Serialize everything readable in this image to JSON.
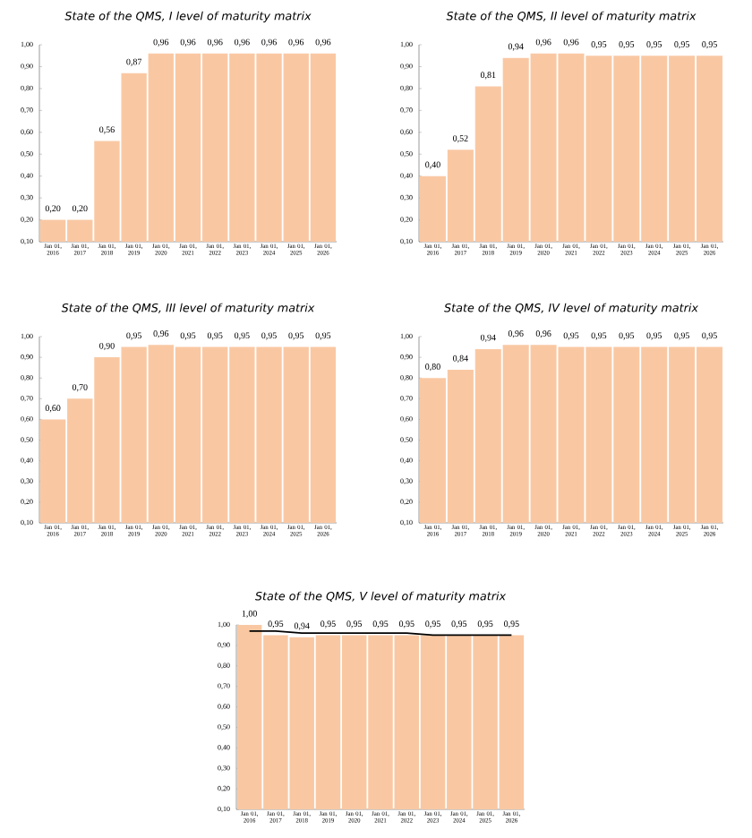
{
  "chart_data": [
    {
      "type": "bar",
      "title": "State of the QMS, I level of maturity matrix",
      "categories": [
        "Jan 01, 2016",
        "Jan 01, 2017",
        "Jan 01, 2018",
        "Jan 01, 2019",
        "Jan 01, 2020",
        "Jan 01, 2021",
        "Jan 01, 2022",
        "Jan 01, 2023",
        "Jan 01, 2024",
        "Jan 01, 2025",
        "Jan 01, 2026"
      ],
      "color": "#f9c8a3",
      "values": [
        0.2,
        0.2,
        0.56,
        0.87,
        0.96,
        0.96,
        0.96,
        0.96,
        0.96,
        0.96,
        0.96
      ],
      "value_labels": [
        "0,20",
        "0,20",
        "0,56",
        "0,87",
        "0,96",
        "0,96",
        "0,96",
        "0,96",
        "0,96",
        "0,96",
        "0,96"
      ],
      "ylim": [
        0.1,
        1.0
      ],
      "yticks": [
        {
          "value": 0.1,
          "label": "0,10"
        },
        {
          "value": 0.2,
          "label": "0,20"
        },
        {
          "value": 0.3,
          "label": "0,30"
        },
        {
          "value": 0.4,
          "label": "0,40"
        },
        {
          "value": 0.5,
          "label": "0,50"
        },
        {
          "value": 0.6,
          "label": "0,60"
        },
        {
          "value": 0.7,
          "label": "0,70"
        },
        {
          "value": 0.8,
          "label": "0,80"
        },
        {
          "value": 0.9,
          "label": "0,90"
        },
        {
          "value": 1.0,
          "label": "1,00"
        }
      ]
    },
    {
      "type": "bar",
      "title": "State of the QMS, II level of maturity matrix",
      "categories": [
        "Jan 01, 2016",
        "Jan 01, 2017",
        "Jan 01, 2018",
        "Jan 01, 2019",
        "Jan 01, 2020",
        "Jan 01, 2021",
        "Jan 01, 2022",
        "Jan 01, 2023",
        "Jan 01, 2024",
        "Jan 01, 2025",
        "Jan 01, 2026"
      ],
      "color": "#f9c8a3",
      "values": [
        0.4,
        0.52,
        0.81,
        0.94,
        0.96,
        0.96,
        0.95,
        0.95,
        0.95,
        0.95,
        0.95
      ],
      "value_labels": [
        "0,40",
        "0,52",
        "0,81",
        "0,94",
        "0,96",
        "0,96",
        "0,95",
        "0,95",
        "0,95",
        "0,95",
        "0,95"
      ],
      "ylim": [
        0.1,
        1.0
      ],
      "yticks": [
        {
          "value": 0.1,
          "label": "0,10"
        },
        {
          "value": 0.2,
          "label": "0,20"
        },
        {
          "value": 0.3,
          "label": "0,30"
        },
        {
          "value": 0.4,
          "label": "0,40"
        },
        {
          "value": 0.5,
          "label": "0,50"
        },
        {
          "value": 0.6,
          "label": "0,60"
        },
        {
          "value": 0.7,
          "label": "0,70"
        },
        {
          "value": 0.8,
          "label": "0,80"
        },
        {
          "value": 0.9,
          "label": "0,90"
        },
        {
          "value": 1.0,
          "label": "1,00"
        }
      ]
    },
    {
      "type": "bar",
      "title": "State of the QMS, III level of maturity matrix",
      "categories": [
        "Jan 01, 2016",
        "Jan 01, 2017",
        "Jan 01, 2018",
        "Jan 01, 2019",
        "Jan 01, 2020",
        "Jan 01, 2021",
        "Jan 01, 2022",
        "Jan 01, 2023",
        "Jan 01, 2024",
        "Jan 01, 2025",
        "Jan 01, 2026"
      ],
      "color": "#f9c8a3",
      "values": [
        0.6,
        0.7,
        0.9,
        0.95,
        0.96,
        0.95,
        0.95,
        0.95,
        0.95,
        0.95,
        0.95
      ],
      "value_labels": [
        "0,60",
        "0,70",
        "0,90",
        "0,95",
        "0,96",
        "0,95",
        "0,95",
        "0,95",
        "0,95",
        "0,95",
        "0,95"
      ],
      "ylim": [
        0.1,
        1.0
      ],
      "yticks": [
        {
          "value": 0.1,
          "label": "0,10"
        },
        {
          "value": 0.2,
          "label": "0,20"
        },
        {
          "value": 0.3,
          "label": "0,30"
        },
        {
          "value": 0.4,
          "label": "0,40"
        },
        {
          "value": 0.5,
          "label": "0,50"
        },
        {
          "value": 0.6,
          "label": "0,60"
        },
        {
          "value": 0.7,
          "label": "0,70"
        },
        {
          "value": 0.8,
          "label": "0,80"
        },
        {
          "value": 0.9,
          "label": "0,90"
        },
        {
          "value": 1.0,
          "label": "1,00"
        }
      ]
    },
    {
      "type": "bar",
      "title": "State of the QMS, IV level of maturity matrix",
      "categories": [
        "Jan 01, 2016",
        "Jan 01, 2017",
        "Jan 01, 2018",
        "Jan 01, 2019",
        "Jan 01, 2020",
        "Jan 01, 2021",
        "Jan 01, 2022",
        "Jan 01, 2023",
        "Jan 01, 2024",
        "Jan 01, 2025",
        "Jan 01, 2026"
      ],
      "color": "#f9c8a3",
      "values": [
        0.8,
        0.84,
        0.94,
        0.96,
        0.96,
        0.95,
        0.95,
        0.95,
        0.95,
        0.95,
        0.95
      ],
      "value_labels": [
        "0,80",
        "0,84",
        "0,94",
        "0,96",
        "0,96",
        "0,95",
        "0,95",
        "0,95",
        "0,95",
        "0,95",
        "0,95"
      ],
      "ylim": [
        0.1,
        1.0
      ],
      "yticks": [
        {
          "value": 0.1,
          "label": "0,10"
        },
        {
          "value": 0.2,
          "label": "0,20"
        },
        {
          "value": 0.3,
          "label": "0,30"
        },
        {
          "value": 0.4,
          "label": "0,40"
        },
        {
          "value": 0.5,
          "label": "0,50"
        },
        {
          "value": 0.6,
          "label": "0,60"
        },
        {
          "value": 0.7,
          "label": "0,70"
        },
        {
          "value": 0.8,
          "label": "0,80"
        },
        {
          "value": 0.9,
          "label": "0,90"
        },
        {
          "value": 1.0,
          "label": "1,00"
        }
      ]
    },
    {
      "type": "bar",
      "title": "State of the QMS, V level of maturity matrix",
      "categories": [
        "Jan 01, 2016",
        "Jan 01, 2017",
        "Jan 01, 2018",
        "Jan 01, 2019",
        "Jan 01, 2020",
        "Jan 01, 2021",
        "Jan 01, 2022",
        "Jan 01, 2023",
        "Jan 01, 2024",
        "Jan 01, 2025",
        "Jan 01, 2026"
      ],
      "series": [
        {
          "type": "bar",
          "color": "#f9c8a3",
          "values": [
            1.0,
            0.95,
            0.94,
            0.95,
            0.95,
            0.95,
            0.95,
            0.95,
            0.95,
            0.95,
            0.95
          ],
          "value_labels": [
            "1,00",
            "0,95",
            "0,94",
            "0,95",
            "0,95",
            "0,95",
            "0,95",
            "0,95",
            "0,95",
            "0,95",
            "0,95"
          ]
        },
        {
          "type": "line",
          "color": "#000000",
          "values": [
            0.97,
            0.97,
            0.96,
            0.96,
            0.96,
            0.96,
            0.96,
            0.95,
            0.95,
            0.95,
            0.95
          ]
        }
      ],
      "ylim": [
        0.1,
        1.0
      ],
      "yticks": [
        {
          "value": 0.1,
          "label": "0,10"
        },
        {
          "value": 0.2,
          "label": "0,20"
        },
        {
          "value": 0.3,
          "label": "0,30"
        },
        {
          "value": 0.4,
          "label": "0,40"
        },
        {
          "value": 0.5,
          "label": "0,50"
        },
        {
          "value": 0.6,
          "label": "0,60"
        },
        {
          "value": 0.7,
          "label": "0,70"
        },
        {
          "value": 0.8,
          "label": "0,80"
        },
        {
          "value": 0.9,
          "label": "0,90"
        },
        {
          "value": 1.0,
          "label": "1,00"
        }
      ]
    }
  ]
}
